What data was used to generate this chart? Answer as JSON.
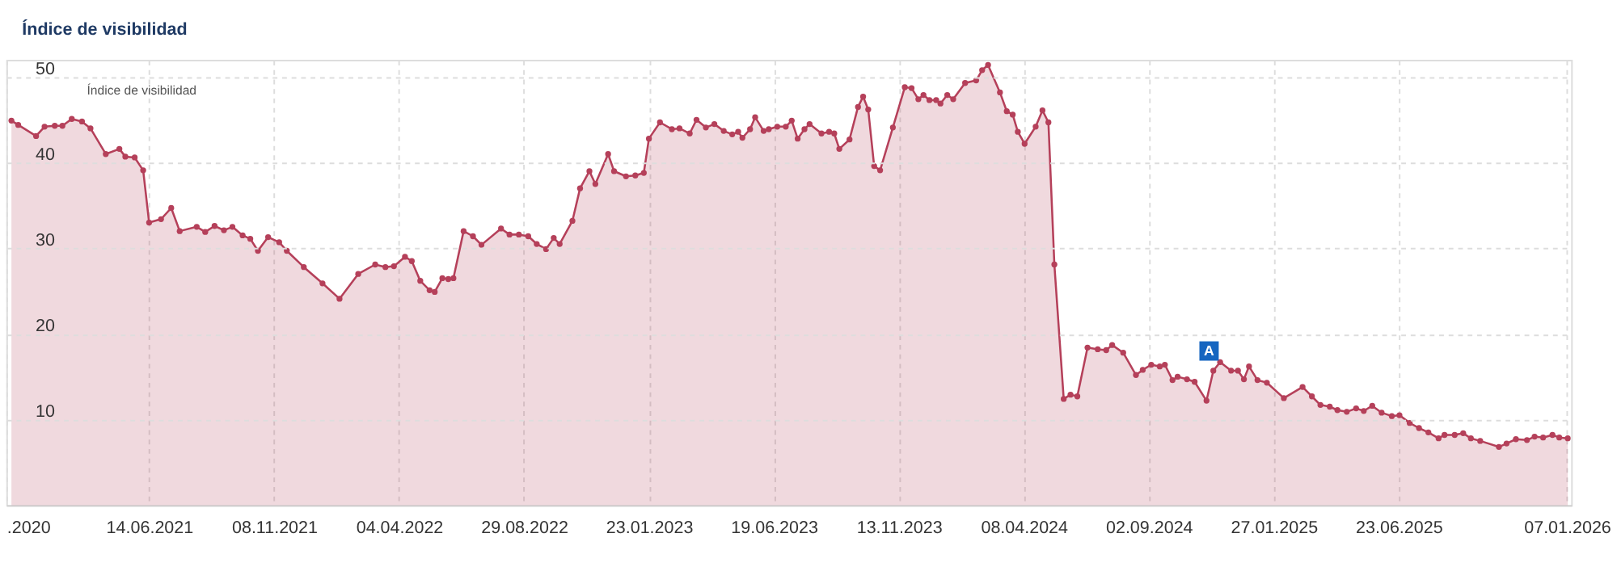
{
  "chart_data": {
    "type": "area",
    "title": "Índice de visibilidad",
    "grid": true,
    "marker": "circle",
    "xlim": [
      "2020-12-28",
      "2026-01-12"
    ],
    "ylim": [
      0,
      52
    ],
    "xticks": [
      {
        "value": "2020-12-28",
        "label": ".2020"
      },
      {
        "value": "2021-06-14",
        "label": "14.06.2021"
      },
      {
        "value": "2021-11-08",
        "label": "08.11.2021"
      },
      {
        "value": "2022-04-04",
        "label": "04.04.2022"
      },
      {
        "value": "2022-08-29",
        "label": "29.08.2022"
      },
      {
        "value": "2023-01-23",
        "label": "23.01.2023"
      },
      {
        "value": "2023-06-19",
        "label": "19.06.2023"
      },
      {
        "value": "2023-11-13",
        "label": "13.11.2023"
      },
      {
        "value": "2024-04-08",
        "label": "08.04.2024"
      },
      {
        "value": "2024-09-02",
        "label": "02.09.2024"
      },
      {
        "value": "2025-01-27",
        "label": "27.01.2025"
      },
      {
        "value": "2025-06-23",
        "label": "23.06.2025"
      },
      {
        "value": "2026-01-07",
        "label": "07.01.2026"
      }
    ],
    "yticks": [
      10,
      20,
      30,
      40,
      50
    ],
    "annotations": [
      "Índice de visibilidad",
      {
        "text": "A",
        "x": "2024-11-12",
        "y": 18
      }
    ],
    "x": [
      "2021-01-03",
      "2021-01-11",
      "2021-02-01",
      "2021-02-11",
      "2021-02-23",
      "2021-03-04",
      "2021-03-15",
      "2021-03-27",
      "2021-04-06",
      "2021-04-24",
      "2021-05-10",
      "2021-05-17",
      "2021-05-28",
      "2021-06-07",
      "2021-06-14",
      "2021-06-28",
      "2021-07-10",
      "2021-07-20",
      "2021-08-09",
      "2021-08-19",
      "2021-08-30",
      "2021-09-10",
      "2021-09-20",
      "2021-10-02",
      "2021-10-11",
      "2021-10-20",
      "2021-11-01",
      "2021-11-14",
      "2021-11-23",
      "2021-12-13",
      "2022-01-04",
      "2022-01-24",
      "2022-02-15",
      "2022-03-07",
      "2022-03-19",
      "2022-03-29",
      "2022-04-11",
      "2022-04-19",
      "2022-04-29",
      "2022-05-10",
      "2022-05-16",
      "2022-05-25",
      "2022-06-01",
      "2022-06-07",
      "2022-06-19",
      "2022-06-30",
      "2022-07-10",
      "2022-08-02",
      "2022-08-12",
      "2022-08-23",
      "2022-09-03",
      "2022-09-13",
      "2022-09-24",
      "2022-10-03",
      "2022-10-10",
      "2022-10-25",
      "2022-11-03",
      "2022-11-14",
      "2022-11-21",
      "2022-12-06",
      "2022-12-13",
      "2022-12-27",
      "2023-01-07",
      "2023-01-17",
      "2023-01-23",
      "2023-02-05",
      "2023-02-19",
      "2023-02-28",
      "2023-03-12",
      "2023-03-20",
      "2023-03-31",
      "2023-04-10",
      "2023-04-21",
      "2023-05-01",
      "2023-05-08",
      "2023-05-13",
      "2023-05-22",
      "2023-05-28",
      "2023-06-07",
      "2023-06-13",
      "2023-06-23",
      "2023-07-03",
      "2023-07-10",
      "2023-07-17",
      "2023-07-25",
      "2023-07-31",
      "2023-08-14",
      "2023-08-23",
      "2023-08-29",
      "2023-09-04",
      "2023-09-16",
      "2023-09-26",
      "2023-10-02",
      "2023-10-08",
      "2023-10-15",
      "2023-10-22",
      "2023-11-06",
      "2023-11-20",
      "2023-11-28",
      "2023-12-06",
      "2023-12-12",
      "2023-12-19",
      "2023-12-27",
      "2024-01-01",
      "2024-01-09",
      "2024-01-16",
      "2024-01-30",
      "2024-02-12",
      "2024-02-19",
      "2024-02-26",
      "2024-03-11",
      "2024-03-19",
      "2024-03-26",
      "2024-04-01",
      "2024-04-09",
      "2024-04-22",
      "2024-04-30",
      "2024-05-07",
      "2024-05-14",
      "2024-05-25",
      "2024-06-02",
      "2024-06-10",
      "2024-06-22",
      "2024-07-04",
      "2024-07-14",
      "2024-07-21",
      "2024-08-03",
      "2024-08-18",
      "2024-08-26",
      "2024-09-05",
      "2024-09-15",
      "2024-09-21",
      "2024-09-30",
      "2024-10-06",
      "2024-10-17",
      "2024-10-26",
      "2024-11-09",
      "2024-11-17",
      "2024-11-25",
      "2024-12-08",
      "2024-12-16",
      "2024-12-23",
      "2024-12-29",
      "2025-01-08",
      "2025-01-19",
      "2025-02-08",
      "2025-03-02",
      "2025-03-13",
      "2025-03-23",
      "2025-04-03",
      "2025-04-12",
      "2025-04-23",
      "2025-05-04",
      "2025-05-13",
      "2025-05-23",
      "2025-06-03",
      "2025-06-15",
      "2025-06-24",
      "2025-07-06",
      "2025-07-17",
      "2025-07-28",
      "2025-08-09",
      "2025-08-16",
      "2025-08-28",
      "2025-09-07",
      "2025-09-16",
      "2025-09-27",
      "2025-10-19",
      "2025-10-28",
      "2025-11-08",
      "2025-11-21",
      "2025-11-30",
      "2025-12-10",
      "2025-12-21",
      "2025-12-29",
      "2026-01-08"
    ],
    "series": [
      {
        "color": "#b5405a",
        "values": [
          44.9,
          44.4,
          43.1,
          44.2,
          44.3,
          44.3,
          45.1,
          44.8,
          44.0,
          41.0,
          41.6,
          40.7,
          40.6,
          39.1,
          33.0,
          33.4,
          34.7,
          32.0,
          32.5,
          31.9,
          32.6,
          32.1,
          32.5,
          31.5,
          31.1,
          29.7,
          31.3,
          30.7,
          29.7,
          27.8,
          25.9,
          24.1,
          27.0,
          28.1,
          27.8,
          27.9,
          29.0,
          28.5,
          26.2,
          25.1,
          24.9,
          26.5,
          26.4,
          26.5,
          32.0,
          31.4,
          30.4,
          32.3,
          31.6,
          31.6,
          31.4,
          30.5,
          29.9,
          31.2,
          30.5,
          33.2,
          37.0,
          39.0,
          37.5,
          41.0,
          39.0,
          38.4,
          38.5,
          38.8,
          42.8,
          44.7,
          43.9,
          44.0,
          43.4,
          45.0,
          44.1,
          44.5,
          43.7,
          43.3,
          43.6,
          42.9,
          43.9,
          45.3,
          43.7,
          43.9,
          44.2,
          44.2,
          44.9,
          42.8,
          43.9,
          44.5,
          43.4,
          43.6,
          43.4,
          41.6,
          42.7,
          46.5,
          47.7,
          46.2,
          39.6,
          39.1,
          44.1,
          48.8,
          48.7,
          47.4,
          47.9,
          47.3,
          47.3,
          46.9,
          47.9,
          47.4,
          49.3,
          49.6,
          50.8,
          51.4,
          48.2,
          46.0,
          45.6,
          43.6,
          42.2,
          44.2,
          46.1,
          44.7,
          28.1,
          12.4,
          12.9,
          12.7,
          18.4,
          18.2,
          18.1,
          18.7,
          17.8,
          15.2,
          15.8,
          16.4,
          16.2,
          16.4,
          14.6,
          15.0,
          14.7,
          14.4,
          12.2,
          15.7,
          16.7,
          15.7,
          15.7,
          14.7,
          16.2,
          14.6,
          14.3,
          12.5,
          13.8,
          12.7,
          11.7,
          11.5,
          11.1,
          10.9,
          11.3,
          11.0,
          11.6,
          10.8,
          10.4,
          10.5,
          9.6,
          9.0,
          8.5,
          7.8,
          8.2,
          8.2,
          8.4,
          7.8,
          7.5,
          6.8,
          7.2,
          7.7,
          7.6,
          8.0,
          7.9,
          8.2,
          7.9,
          7.8
        ]
      }
    ]
  }
}
